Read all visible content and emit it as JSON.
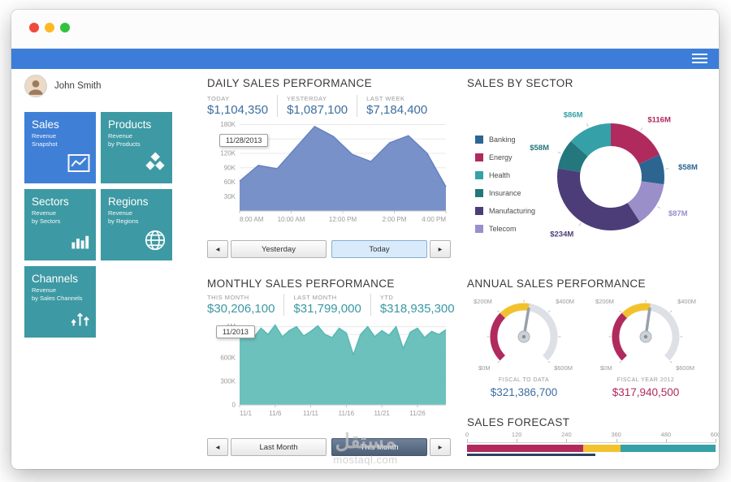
{
  "user": {
    "name": "John Smith"
  },
  "tiles": [
    {
      "title": "Sales",
      "subtitle_line1": "Revenue",
      "subtitle_line2": "Snapshot",
      "color": "#3f7fd6",
      "icon": "line-chart-icon"
    },
    {
      "title": "Products",
      "subtitle_line1": "Revenue",
      "subtitle_line2": "by Products",
      "color": "#3d99a3",
      "icon": "boxes-icon"
    },
    {
      "title": "Sectors",
      "subtitle_line1": "Revenue",
      "subtitle_line2": "by Sectors",
      "color": "#3d99a3",
      "icon": "bar-chart-icon"
    },
    {
      "title": "Regions",
      "subtitle_line1": "Revenue",
      "subtitle_line2": "by Regions",
      "color": "#3d99a3",
      "icon": "globe-icon"
    },
    {
      "title": "Channels",
      "subtitle_line1": "Revenue",
      "subtitle_line2": "by Sales Channels",
      "color": "#3d99a3",
      "icon": "arrows-up-icon"
    }
  ],
  "daily": {
    "title": "DAILY SALES PERFORMANCE",
    "value_color": "#3c6e9f",
    "stats": [
      {
        "label": "TODAY",
        "value": "$1,104,350"
      },
      {
        "label": "YESTERDAY",
        "value": "$1,087,100"
      },
      {
        "label": "LAST WEEK",
        "value": "$7,184,400"
      }
    ],
    "nav": {
      "prev": "◂",
      "next": "▸",
      "buttons": [
        {
          "label": "Yesterday",
          "selected": false
        },
        {
          "label": "Today",
          "selected": true
        }
      ]
    }
  },
  "monthly": {
    "title": "MONTHLY SALES PERFORMANCE",
    "value_color": "#3a98a2",
    "stats": [
      {
        "label": "THIS MONTH",
        "value": "$30,206,100"
      },
      {
        "label": "LAST MONTH",
        "value": "$31,799,000"
      },
      {
        "label": "YTD",
        "value": "$318,935,300"
      }
    ],
    "nav": {
      "prev": "◂",
      "next": "▸",
      "buttons": [
        {
          "label": "Last Month",
          "selected": false
        },
        {
          "label": "This Month",
          "selected": true
        }
      ]
    }
  },
  "sector": {
    "title": "SALES BY SECTOR",
    "legend": [
      {
        "label": "Banking",
        "color": "#2d6591"
      },
      {
        "label": "Energy",
        "color": "#b02a5e"
      },
      {
        "label": "Health",
        "color": "#36a0a8"
      },
      {
        "label": "Insurance",
        "color": "#23777d"
      },
      {
        "label": "Manufacturing",
        "color": "#4c3d78"
      },
      {
        "label": "Telecom",
        "color": "#9a8fc8"
      }
    ]
  },
  "annual": {
    "title": "ANNUAL SALES PERFORMANCE",
    "gauges": [
      {
        "caption": "FISCAL TO DATA",
        "display": "$321,386,700",
        "display_color": "#3c6e9f"
      },
      {
        "caption": "FISCAL YEAR 2012",
        "display": "$317,940,500",
        "display_color": "#b02a5e"
      }
    ]
  },
  "forecast": {
    "title": "SALES FORECAST"
  },
  "watermark": {
    "line1": "مستقل",
    "line2": "mostaql.com"
  },
  "chart_data": [
    {
      "id": "daily_area",
      "type": "area",
      "title": "DAILY SALES PERFORMANCE",
      "annotation": "11/28/2013",
      "values": [
        62000,
        95000,
        88000,
        132000,
        176000,
        155000,
        118000,
        103000,
        142000,
        157000,
        120000,
        50000
      ],
      "ylim": [
        0,
        186000
      ],
      "yticks": [
        {
          "v": 30000,
          "label": "30K"
        },
        {
          "v": 60000,
          "label": "60K"
        },
        {
          "v": 90000,
          "label": "90K"
        },
        {
          "v": 120000,
          "label": "120K"
        },
        {
          "v": 150000,
          "label": "150K"
        },
        {
          "v": 180000,
          "label": "180K"
        }
      ],
      "xticks": [
        {
          "pos": 0,
          "label": "8:00 AM"
        },
        {
          "pos": 0.25,
          "label": "10:00 AM"
        },
        {
          "pos": 0.5,
          "label": "12:00 PM"
        },
        {
          "pos": 0.75,
          "label": "2:00 PM"
        },
        {
          "pos": 1,
          "label": "4:00 PM"
        }
      ],
      "color": "#6682c1",
      "grid": true,
      "legend_position": "none"
    },
    {
      "id": "monthly_area",
      "type": "area",
      "title": "MONTHLY SALES PERFORMANCE",
      "annotation": "11/2013",
      "values": [
        880000,
        1000000,
        860000,
        980000,
        900000,
        1020000,
        870000,
        950000,
        1000000,
        880000,
        940000,
        1010000,
        900000,
        860000,
        980000,
        920000,
        640000,
        900000,
        1000000,
        870000,
        950000,
        890000,
        1000000,
        720000,
        930000,
        980000,
        860000,
        940000,
        900000,
        960000
      ],
      "ylim": [
        0,
        1120000
      ],
      "yticks": [
        {
          "v": 0,
          "label": "0"
        },
        {
          "v": 300000,
          "label": "300K"
        },
        {
          "v": 600000,
          "label": "600K"
        },
        {
          "v": 900000,
          "label": "900K"
        },
        {
          "v": 1000000,
          "label": "1M"
        }
      ],
      "xticks": [
        {
          "pos": 0,
          "label": "11/1"
        },
        {
          "pos": 0.1724,
          "label": "11/6"
        },
        {
          "pos": 0.3448,
          "label": "11/11"
        },
        {
          "pos": 0.5172,
          "label": "11/16"
        },
        {
          "pos": 0.6897,
          "label": "11/21"
        },
        {
          "pos": 0.8621,
          "label": "11/26"
        }
      ],
      "color": "#58b8b4",
      "grid": true,
      "legend_position": "none"
    },
    {
      "id": "sector_donut",
      "type": "pie",
      "donut": true,
      "title": "SALES BY SECTOR",
      "unit": "$M",
      "start": "top",
      "direction": "clockwise",
      "legend_position": "left",
      "slices": [
        {
          "name": "Energy",
          "value": 116,
          "label": "$116M",
          "color": "#b02a5e"
        },
        {
          "name": "Banking",
          "value": 58,
          "label": "$58M",
          "color": "#2d6591"
        },
        {
          "name": "Telecom",
          "value": 87,
          "label": "$87M",
          "color": "#9a8fc8"
        },
        {
          "name": "Manufacturing",
          "value": 234,
          "label": "$234M",
          "color": "#4c3d78"
        },
        {
          "name": "Insurance",
          "value": 58,
          "label": "$58M",
          "color": "#23777d"
        },
        {
          "name": "Health",
          "value": 86,
          "label": "$86M",
          "color": "#36a0a8"
        }
      ]
    },
    {
      "id": "annual_gauge_1",
      "type": "gauge",
      "min": 0,
      "max": 600,
      "value": 321.3867,
      "caption": "FISCAL TO DATA",
      "display": "$321,386,700",
      "corner_labels": {
        "bottom_left": "$0M",
        "top_left": "$200M",
        "top_right": "$400M",
        "bottom_right": "$600M"
      },
      "segments": [
        {
          "from": 0,
          "to": 200,
          "color": "#b02a5e"
        },
        {
          "from": 200,
          "to": 321.4,
          "color": "#f2c22e"
        },
        {
          "from": 321.4,
          "to": 600,
          "color": "#dde1e6"
        }
      ]
    },
    {
      "id": "annual_gauge_2",
      "type": "gauge",
      "min": 0,
      "max": 600,
      "value": 317.9405,
      "caption": "FISCAL YEAR 2012",
      "display": "$317,940,500",
      "corner_labels": {
        "bottom_left": "$0M",
        "top_left": "$200M",
        "top_right": "$400M",
        "bottom_right": "$600M"
      },
      "segments": [
        {
          "from": 0,
          "to": 200,
          "color": "#b02a5e"
        },
        {
          "from": 200,
          "to": 317.9,
          "color": "#f2c22e"
        },
        {
          "from": 317.9,
          "to": 600,
          "color": "#dde1e6"
        }
      ]
    },
    {
      "id": "forecast_linear",
      "type": "linear-gauge",
      "title": "SALES FORECAST",
      "min": 0,
      "max": 600,
      "ticks": [
        {
          "v": 0,
          "label": "0"
        },
        {
          "v": 120,
          "label": "120"
        },
        {
          "v": 240,
          "label": "240"
        },
        {
          "v": 360,
          "label": "360"
        },
        {
          "v": 480,
          "label": "480"
        },
        {
          "v": 600,
          "label": "600"
        }
      ],
      "segments": [
        {
          "from": 0,
          "to": 280,
          "color": "#b02a5e"
        },
        {
          "from": 280,
          "to": 370,
          "color": "#f2c22e"
        },
        {
          "from": 370,
          "to": 600,
          "color": "#36a0a8"
        }
      ],
      "marker": {
        "from": 0,
        "to": 310,
        "color": "#2d3f63"
      }
    }
  ]
}
